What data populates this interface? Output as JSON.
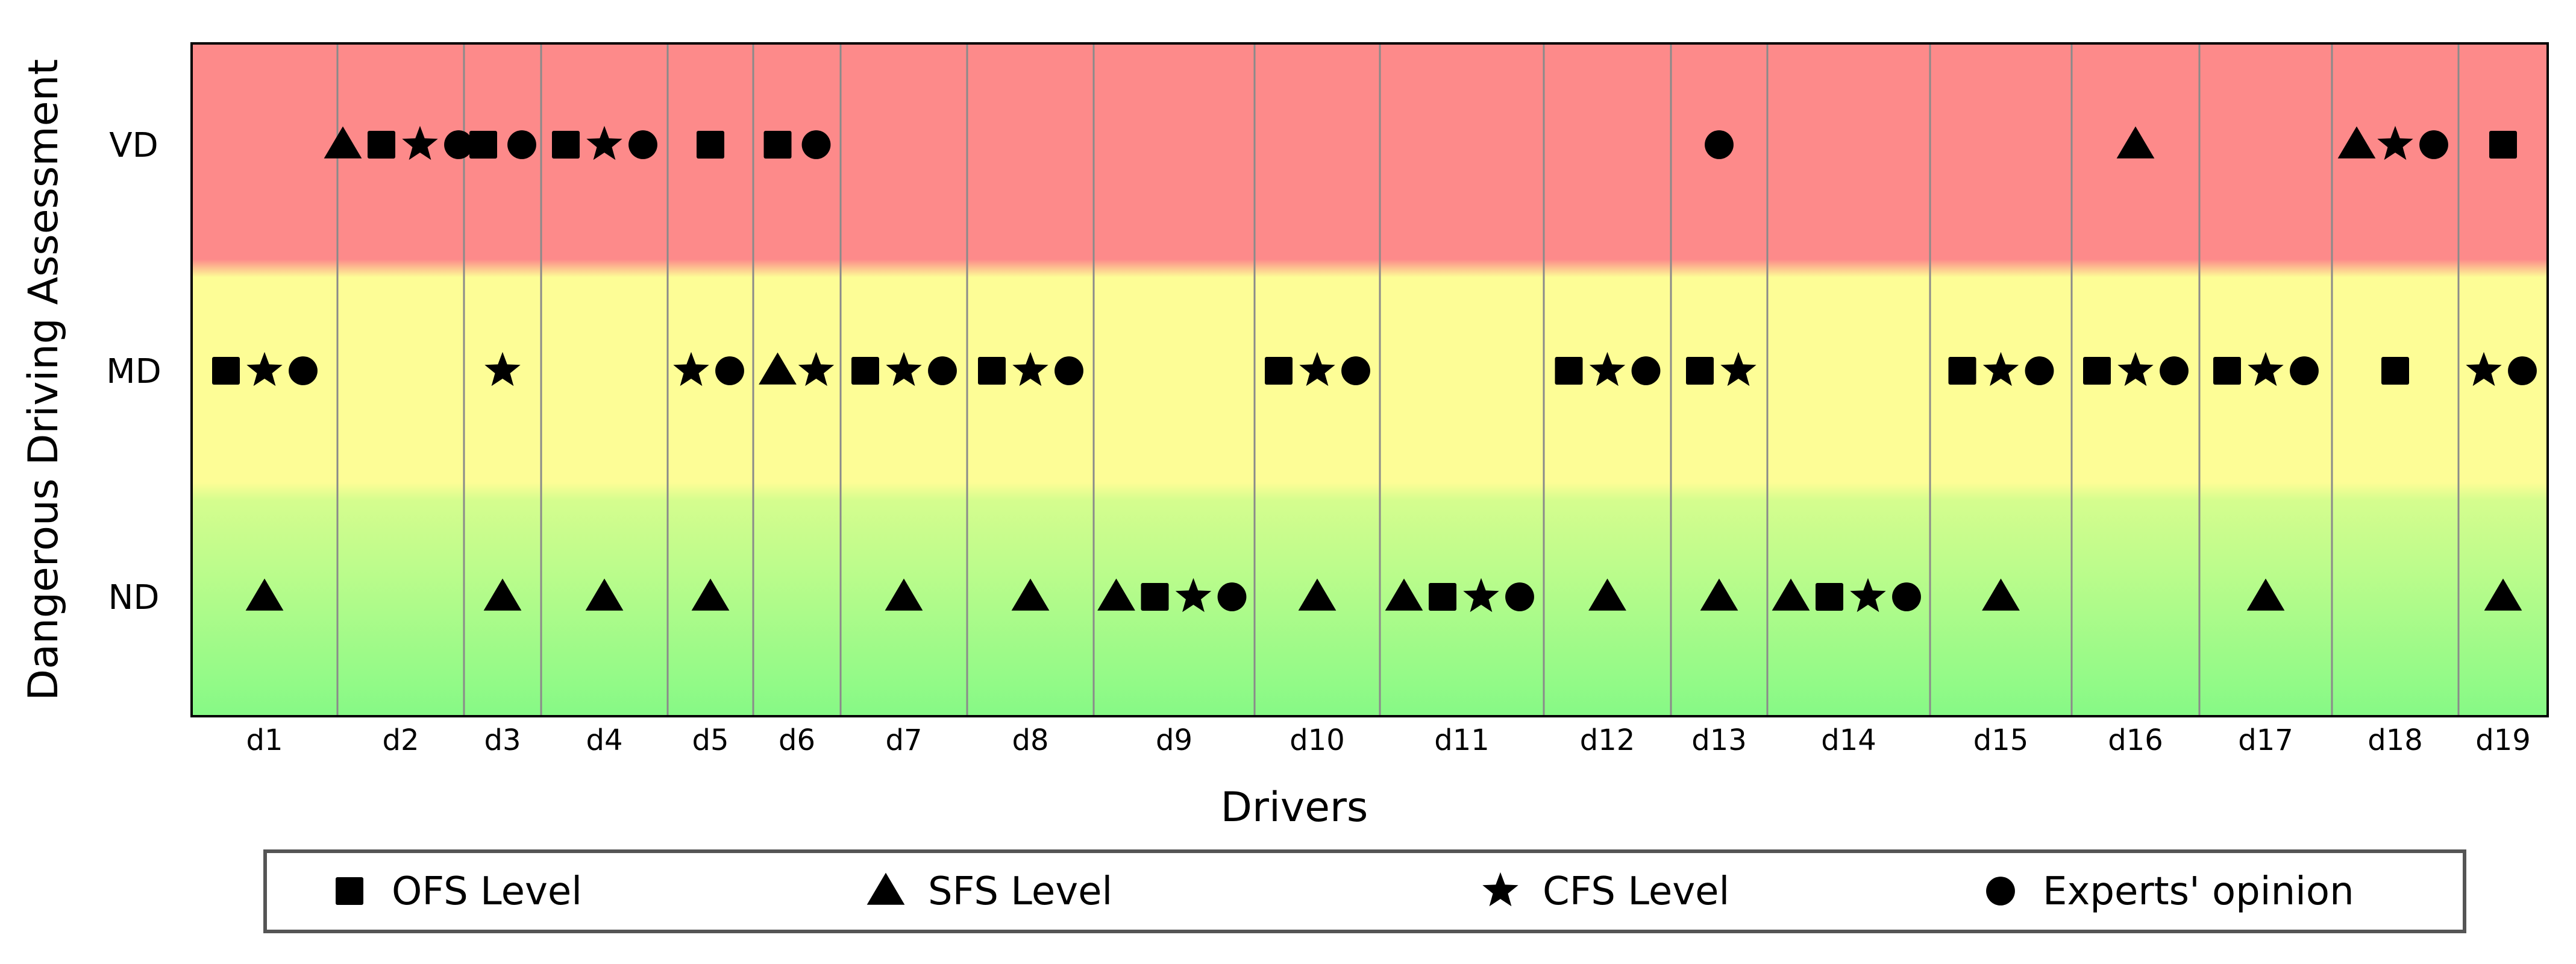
{
  "chart_data": {
    "type": "scatter",
    "title": "",
    "xlabel": "Drivers",
    "ylabel": "Dangerous Driving Assessment",
    "categories": [
      "d1",
      "d2",
      "d3",
      "d4",
      "d5",
      "d6",
      "d7",
      "d8",
      "d9",
      "d10",
      "d11",
      "d12",
      "d13",
      "d14",
      "d15",
      "d16",
      "d17",
      "d18",
      "d19"
    ],
    "levels": [
      "ND",
      "MD",
      "VD"
    ],
    "band_colors": {
      "VD": "#fd8a8a",
      "MD": "#fdfd96",
      "ND": "#8ef98a"
    },
    "legend_position": "bottom",
    "grid": true,
    "series": [
      {
        "name": "OFS Level",
        "marker": "square",
        "values": [
          "MD",
          "VD",
          "VD",
          "VD",
          "VD",
          "VD",
          "MD",
          "MD",
          "ND",
          "MD",
          "ND",
          "MD",
          "MD",
          "ND",
          "MD",
          "MD",
          "MD",
          "MD",
          "VD"
        ]
      },
      {
        "name": "SFS Level",
        "marker": "triangle",
        "values": [
          "ND",
          "VD",
          "ND",
          "ND",
          "ND",
          "MD",
          "ND",
          "ND",
          "ND",
          "ND",
          "ND",
          "ND",
          "ND",
          "ND",
          "ND",
          "VD",
          "ND",
          "VD",
          "ND"
        ]
      },
      {
        "name": "CFS Level",
        "marker": "star",
        "values": [
          "MD",
          "VD",
          "MD",
          "VD",
          "MD",
          "MD",
          "MD",
          "MD",
          "ND",
          "MD",
          "ND",
          "MD",
          "MD",
          "ND",
          "MD",
          "MD",
          "MD",
          "VD",
          "MD"
        ]
      },
      {
        "name": "Experts' opinion",
        "marker": "circle",
        "values": [
          "MD",
          "VD",
          "VD",
          "VD",
          "MD",
          "VD",
          "MD",
          "MD",
          "ND",
          "MD",
          "ND",
          "MD",
          "VD",
          "ND",
          "MD",
          "MD",
          "MD",
          "VD",
          "MD"
        ]
      }
    ]
  }
}
